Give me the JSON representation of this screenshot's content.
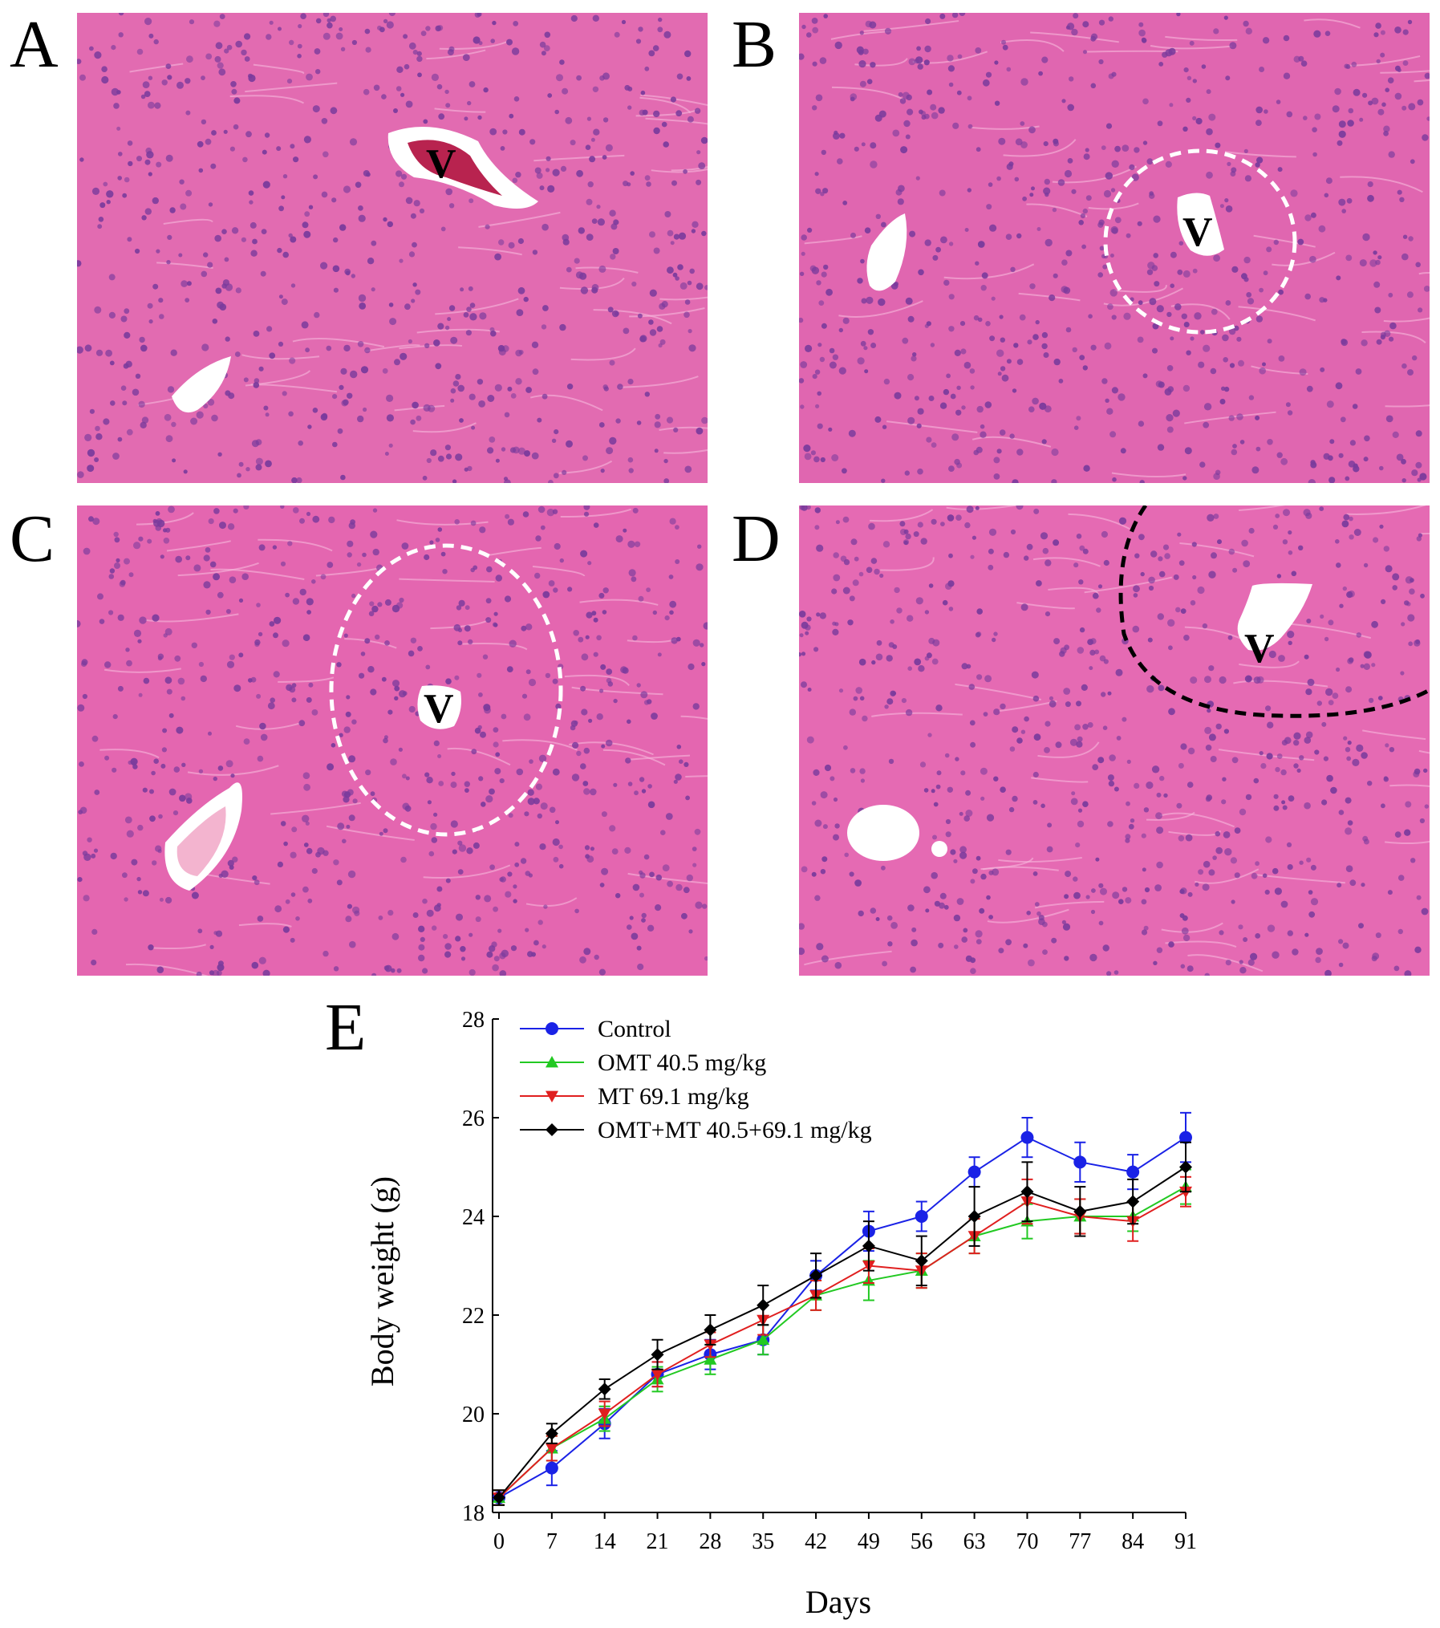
{
  "panels": [
    {
      "label": "A",
      "marker": "V",
      "color": "#e26bb1"
    },
    {
      "label": "B",
      "marker": "V",
      "color": "#e066b0"
    },
    {
      "label": "C",
      "marker": "V",
      "color": "#e466b0"
    },
    {
      "label": "D",
      "marker": "V",
      "color": "#e56ab3"
    }
  ],
  "colors": {
    "tissue": "#e26bb1",
    "nuclei": "#7a3b9c",
    "background": "#ffffff"
  },
  "chart_data": {
    "type": "line",
    "panel_label": "E",
    "xlabel": "Days",
    "ylabel": "Body weight (g)",
    "ylim": [
      18,
      28
    ],
    "yticks": [
      18,
      20,
      22,
      24,
      26,
      28
    ],
    "x": [
      0,
      7,
      14,
      21,
      28,
      35,
      42,
      49,
      56,
      63,
      70,
      77,
      84,
      91
    ],
    "legend_position": "top-left",
    "series": [
      {
        "name": "Control",
        "color": "#1a22e6",
        "marker": "circle",
        "values": [
          18.3,
          18.9,
          19.8,
          20.8,
          21.2,
          21.5,
          22.8,
          23.7,
          24.0,
          24.9,
          25.6,
          25.1,
          24.9,
          25.6
        ],
        "errors": [
          0.15,
          0.35,
          0.3,
          0.25,
          0.3,
          0.3,
          0.3,
          0.4,
          0.3,
          0.3,
          0.4,
          0.4,
          0.35,
          0.5
        ]
      },
      {
        "name": "OMT 40.5 mg/kg",
        "color": "#22c922",
        "marker": "triangle-up",
        "values": [
          18.3,
          19.3,
          19.9,
          20.7,
          21.1,
          21.5,
          22.4,
          22.7,
          22.9,
          23.6,
          23.9,
          24.0,
          24.0,
          24.6
        ],
        "errors": [
          0.15,
          0.25,
          0.25,
          0.25,
          0.3,
          0.3,
          0.3,
          0.4,
          0.35,
          0.35,
          0.35,
          0.35,
          0.3,
          0.35
        ]
      },
      {
        "name": "MT 69.1 mg/kg",
        "color": "#e01f1f",
        "marker": "triangle-down",
        "values": [
          18.3,
          19.3,
          20.0,
          20.8,
          21.4,
          21.9,
          22.4,
          23.0,
          22.9,
          23.6,
          24.3,
          24.0,
          23.9,
          24.5
        ],
        "errors": [
          0.15,
          0.25,
          0.25,
          0.25,
          0.25,
          0.3,
          0.3,
          0.35,
          0.35,
          0.35,
          0.45,
          0.35,
          0.4,
          0.3
        ]
      },
      {
        "name": "OMT+MT 40.5+69.1 mg/kg",
        "color": "#000000",
        "marker": "diamond",
        "values": [
          18.3,
          19.6,
          20.5,
          21.2,
          21.7,
          22.2,
          22.8,
          23.4,
          23.1,
          24.0,
          24.5,
          24.1,
          24.3,
          25.0
        ],
        "errors": [
          0.15,
          0.2,
          0.2,
          0.3,
          0.3,
          0.4,
          0.45,
          0.5,
          0.5,
          0.6,
          0.6,
          0.5,
          0.45,
          0.5
        ]
      }
    ]
  }
}
